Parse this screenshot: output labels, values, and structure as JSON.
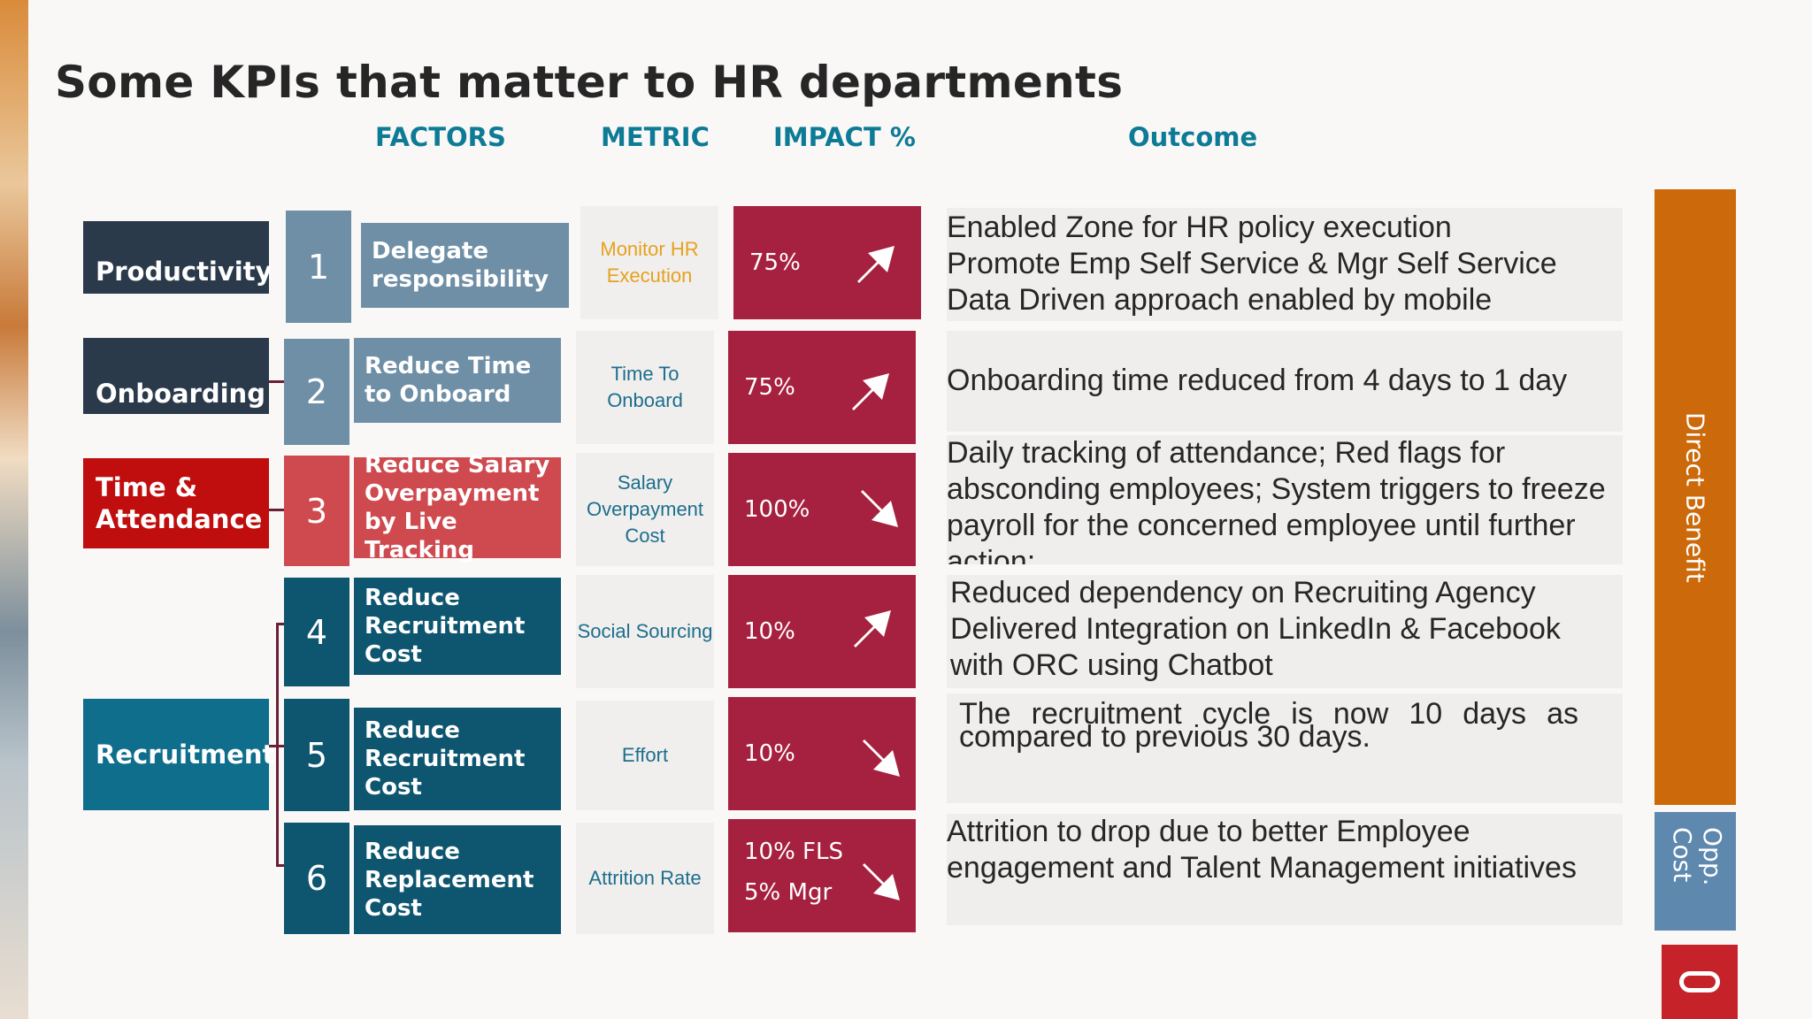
{
  "title": "Some KPIs that matter to HR departments",
  "columns": {
    "factors": "FACTORS",
    "metric": "METRIC",
    "impact": "IMPACT %",
    "outcome": "Outcome"
  },
  "categories": [
    {
      "label": "Productivity",
      "color": "#2b3a4a"
    },
    {
      "label": "Onboarding",
      "color": "#2b3a4a"
    },
    {
      "label": "Time & Attendance",
      "color": "#c00d0d"
    },
    {
      "label": "Recruitment",
      "color": "#0e6e8c"
    }
  ],
  "rows": [
    {
      "num": "1",
      "factor": "Delegate responsibility",
      "metric": "Monitor HR Execution",
      "impact": "75%",
      "arrow": "up",
      "outcome": "Enabled Zone for HR policy execution\nPromote Emp Self Service & Mgr Self Service\nData Driven approach enabled by mobile\ninterface"
    },
    {
      "num": "2",
      "factor": "Reduce Time to Onboard",
      "metric": "Time To Onboard",
      "impact": "75%",
      "arrow": "up",
      "outcome": "Onboarding time reduced from 4 days to 1 day"
    },
    {
      "num": "3",
      "factor": "Reduce Salary Overpayment by Live Tracking",
      "metric": "Salary Overpayment Cost",
      "impact": "100%",
      "arrow": "down",
      "outcome": "Daily tracking of attendance; Red flags for\nabsconding employees; System triggers to freeze\npayroll for the concerned employee until further\naction;"
    },
    {
      "num": "4",
      "factor": "Reduce Recruitment Cost",
      "metric": "Social Sourcing",
      "impact": "10%",
      "arrow": "up",
      "outcome": "Reduced dependency on Recruiting Agency\nDelivered Integration on LinkedIn & Facebook\nwith ORC using Chatbot"
    },
    {
      "num": "5",
      "factor": "Reduce Recruitment Cost",
      "metric": "Effort",
      "impact": "10%",
      "arrow": "down",
      "outcome": "The recruitment cycle is now 10 days as compared to previous 30 days."
    },
    {
      "num": "6",
      "factor": "Reduce Replacement Cost",
      "metric": "Attrition Rate",
      "impact_line1": "10% FLS",
      "impact_line2": "5% Mgr",
      "arrow": "down",
      "outcome": "Attrition to drop due to better Employee\nengagement and Talent Management initiatives"
    }
  ],
  "side": {
    "direct_benefit": "Direct Benefit",
    "opp_cost": "Opp. Cost"
  },
  "colors": {
    "impact": "#a6213f",
    "steel": "#6f8fa6",
    "teal": "#0e5670",
    "red_light": "#cf4a4f",
    "orange": "#cc6a0b",
    "oracle_red": "#c5222a",
    "heading": "#0e7b96"
  }
}
